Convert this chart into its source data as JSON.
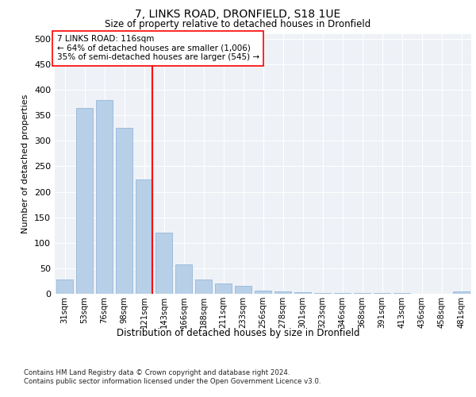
{
  "title1": "7, LINKS ROAD, DRONFIELD, S18 1UE",
  "title2": "Size of property relative to detached houses in Dronfield",
  "xlabel": "Distribution of detached houses by size in Dronfield",
  "ylabel": "Number of detached properties",
  "bar_labels": [
    "31sqm",
    "53sqm",
    "76sqm",
    "98sqm",
    "121sqm",
    "143sqm",
    "166sqm",
    "188sqm",
    "211sqm",
    "233sqm",
    "256sqm",
    "278sqm",
    "301sqm",
    "323sqm",
    "346sqm",
    "368sqm",
    "391sqm",
    "413sqm",
    "436sqm",
    "458sqm",
    "481sqm"
  ],
  "bar_values": [
    28,
    365,
    380,
    325,
    225,
    120,
    58,
    28,
    20,
    15,
    7,
    5,
    3,
    2,
    2,
    2,
    2,
    2,
    0,
    0,
    4
  ],
  "bar_color": "#b8cfe8",
  "bar_edgecolor": "#8aafd4",
  "vline_index": 4,
  "vline_color": "red",
  "annotation_text": "7 LINKS ROAD: 116sqm\n← 64% of detached houses are smaller (1,006)\n35% of semi-detached houses are larger (545) →",
  "annotation_box_color": "white",
  "annotation_box_edgecolor": "red",
  "ylim": [
    0,
    510
  ],
  "yticks": [
    0,
    50,
    100,
    150,
    200,
    250,
    300,
    350,
    400,
    450,
    500
  ],
  "footer1": "Contains HM Land Registry data © Crown copyright and database right 2024.",
  "footer2": "Contains public sector information licensed under the Open Government Licence v3.0.",
  "axes_bg_color": "#eef2f7",
  "fig_bg_color": "#ffffff"
}
